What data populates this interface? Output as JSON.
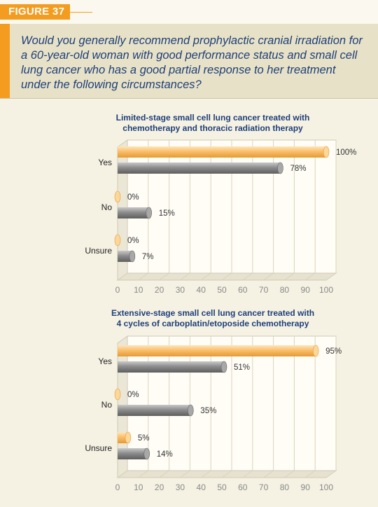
{
  "figure_label": "FIGURE 37",
  "question": "Would you generally recommend prophylactic cranial irradiation for a 60-year-old woman with good performance status and small cell lung cancer who has a good partial response to her treatment under the following circumstances?",
  "colors": {
    "accent": "#f39c1f",
    "title": "#1f3e78",
    "bar_orange": "#fbbf6a",
    "bar_gray": "#8a8a8a"
  },
  "chart_data": [
    {
      "type": "bar",
      "orientation": "horizontal",
      "title": "Limited-stage small cell lung cancer treated with chemotherapy and thoracic radiation therapy",
      "title_lines": [
        "Limited-stage small cell lung cancer treated with",
        "chemotherapy and thoracic radiation therapy"
      ],
      "categories": [
        "Yes",
        "No",
        "Unsure"
      ],
      "series": [
        {
          "values": [
            100,
            0,
            0
          ],
          "labels": [
            "100%",
            "0%",
            "0%"
          ],
          "color": "#fbbf6a"
        },
        {
          "values": [
            78,
            15,
            7
          ],
          "labels": [
            "78%",
            "15%",
            "7%"
          ],
          "color": "#8a8a8a"
        }
      ],
      "xlim": [
        0,
        100
      ],
      "xticks": [
        "0",
        "10",
        "20",
        "30",
        "40",
        "50",
        "60",
        "70",
        "80",
        "90",
        "100"
      ],
      "grid": true
    },
    {
      "type": "bar",
      "orientation": "horizontal",
      "title": "Extensive-stage small cell lung cancer treated with 4 cycles of carboplatin/etoposide chemotherapy",
      "title_lines": [
        "Extensive-stage small cell lung cancer treated with",
        "4 cycles of carboplatin/etoposide chemotherapy"
      ],
      "categories": [
        "Yes",
        "No",
        "Unsure"
      ],
      "series": [
        {
          "values": [
            95,
            0,
            5
          ],
          "labels": [
            "95%",
            "0%",
            "5%"
          ],
          "color": "#fbbf6a"
        },
        {
          "values": [
            51,
            35,
            14
          ],
          "labels": [
            "51%",
            "35%",
            "14%"
          ],
          "color": "#8a8a8a"
        }
      ],
      "xlim": [
        0,
        100
      ],
      "xticks": [
        "0",
        "10",
        "20",
        "30",
        "40",
        "50",
        "60",
        "70",
        "80",
        "90",
        "100"
      ],
      "grid": true
    }
  ]
}
